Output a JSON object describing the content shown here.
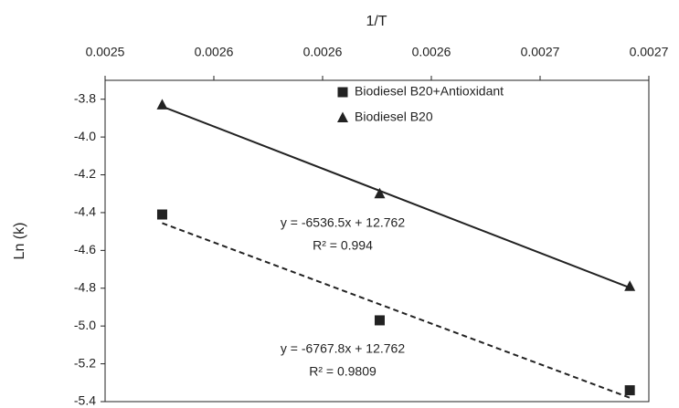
{
  "chart_data": {
    "type": "scatter",
    "x_label": "1/T",
    "y_label": "Ln (k)",
    "xlim": [
      0.00252,
      0.00272
    ],
    "xticks": [
      {
        "value": 0.00252,
        "label": "0.0025"
      },
      {
        "value": 0.00256,
        "label": "0.0026"
      },
      {
        "value": 0.0026,
        "label": "0.0026"
      },
      {
        "value": 0.00264,
        "label": "0.0026"
      },
      {
        "value": 0.00268,
        "label": "0.0027"
      },
      {
        "value": 0.00272,
        "label": "0.0027"
      }
    ],
    "ylim": [
      -5.4,
      -3.7
    ],
    "yticks": [
      -3.8,
      {
        "value": -4,
        "label": "-4.0"
      },
      -4.2,
      -4.4,
      -4.6,
      -4.8,
      {
        "value": -5,
        "label": "-5.0"
      },
      -5.2,
      -5.4
    ],
    "series": [
      {
        "name": "Biodiesel B20+Antioxidant",
        "color": "#222222",
        "marker": "square",
        "line": "dashed",
        "x": [
          0.002541,
          0.002621,
          0.002713
        ],
        "values": [
          -4.41,
          -4.97,
          -5.34
        ]
      },
      {
        "name": "Biodiesel B20",
        "color": "#222222",
        "marker": "triangle",
        "line": "solid",
        "x": [
          0.002541,
          0.002621,
          0.002713
        ],
        "values": [
          -3.83,
          -4.3,
          -4.79
        ]
      }
    ],
    "annotations": [
      "y = -6536.5x + 12.762",
      "R² = 0.994",
      "y = -6767.8x + 12.762",
      "R² = 0.9809"
    ],
    "legend": "upper right"
  }
}
